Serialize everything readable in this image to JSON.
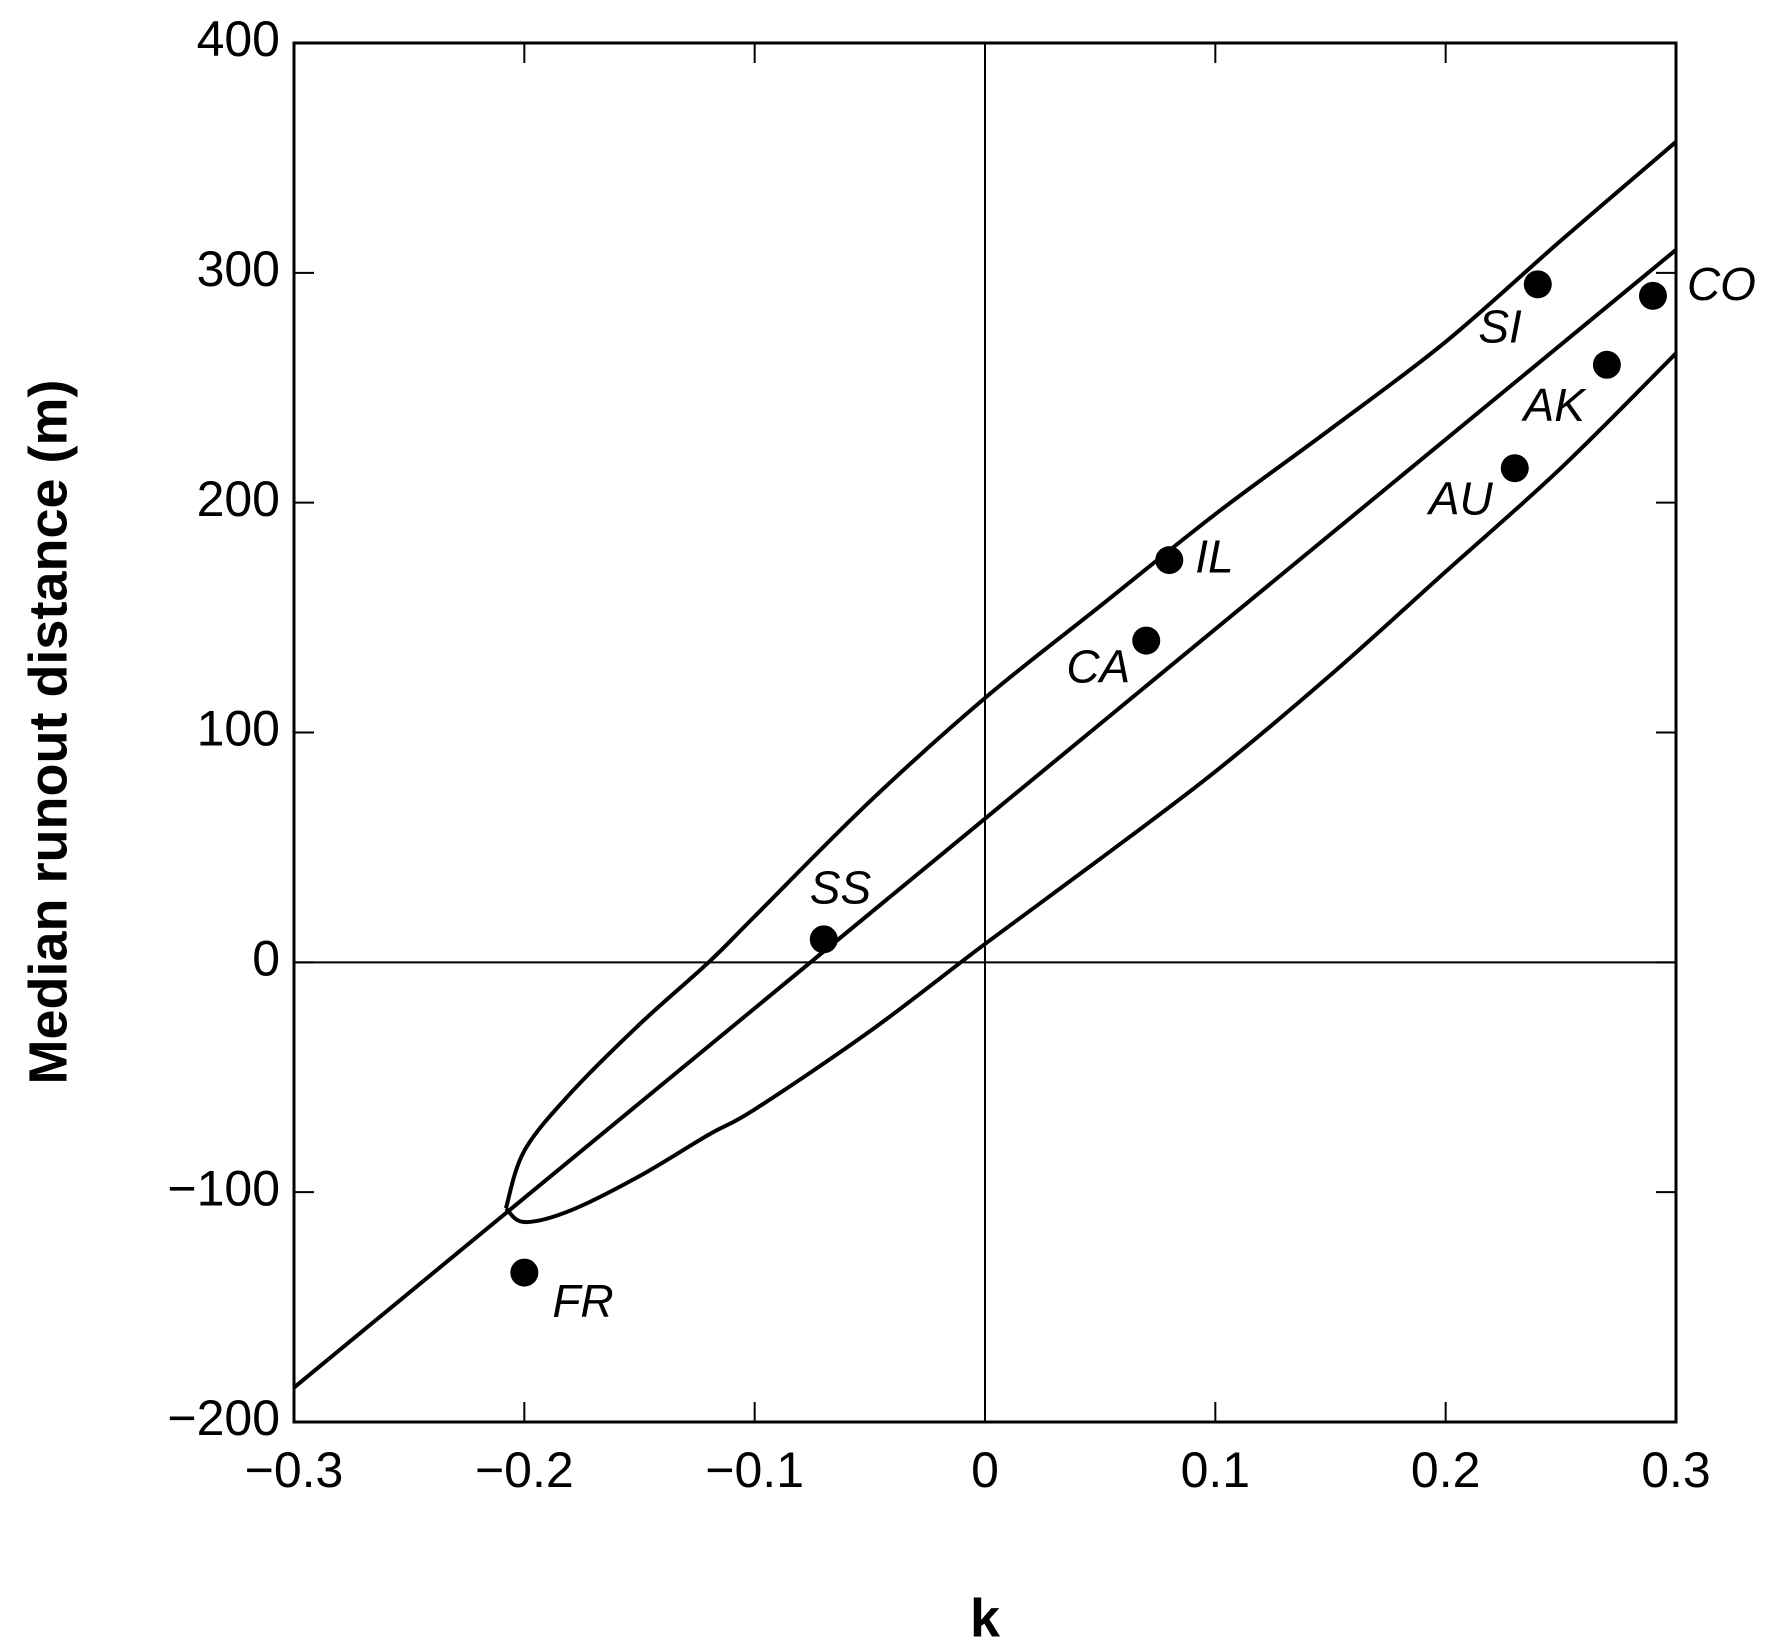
{
  "chart_data": {
    "type": "scatter",
    "x_label": "k",
    "y_label": "Median runout distance (m)",
    "xlim": [
      -0.3,
      0.3
    ],
    "ylim": [
      -200,
      400
    ],
    "xticks": [
      {
        "value": -0.3,
        "label": "−0.3"
      },
      {
        "value": -0.2,
        "label": "−0.2"
      },
      {
        "value": -0.1,
        "label": "−0.1"
      },
      0,
      0.1,
      0.2,
      0.3
    ],
    "yticks": [
      {
        "value": -200,
        "label": "−200"
      },
      {
        "value": -100,
        "label": "−100"
      },
      0,
      100,
      200,
      300,
      400
    ],
    "points": {
      "color": "#000000",
      "labels": [
        "FR",
        "SS",
        "CA",
        "IL",
        "SI",
        "AK",
        "AU",
        "CO"
      ],
      "x": [
        -0.2,
        -0.07,
        0.07,
        0.08,
        0.24,
        0.27,
        0.23,
        0.29
      ],
      "values": [
        -135,
        10,
        140,
        175,
        295,
        260,
        215,
        290
      ]
    },
    "lines": [
      {
        "color": "#000000",
        "x": [
          -0.3,
          0.3
        ],
        "values": [
          -185,
          310
        ]
      },
      {
        "color": "#000000",
        "x": [
          -0.208,
          -0.2,
          -0.18,
          -0.15,
          -0.12,
          -0.1,
          -0.05,
          0,
          0.05,
          0.1,
          0.15,
          0.2,
          0.25,
          0.3
        ],
        "values": [
          -107,
          -82,
          -57,
          -27,
          0,
          20,
          70,
          115,
          155,
          195,
          232,
          270,
          314,
          357
        ]
      },
      {
        "color": "#000000",
        "x": [
          -0.208,
          -0.2,
          -0.18,
          -0.15,
          -0.12,
          -0.1,
          -0.05,
          0,
          0.05,
          0.1,
          0.15,
          0.2,
          0.25,
          0.3
        ],
        "values": [
          -107,
          -113,
          -108,
          -93,
          -75,
          -64,
          -30,
          8,
          45,
          83,
          125,
          170,
          215,
          265
        ]
      }
    ]
  }
}
